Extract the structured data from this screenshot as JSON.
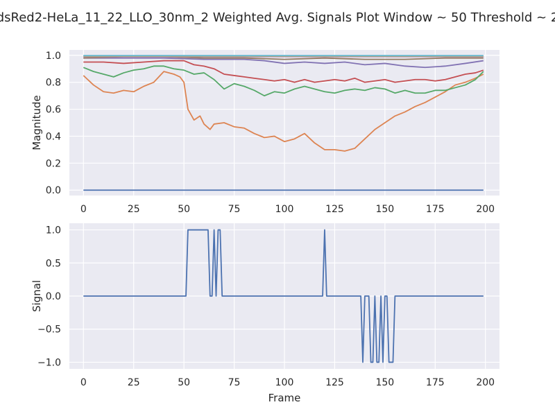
{
  "figure": {
    "title": "dsRed2-HeLa_11_22_LLO_30nm_2 Weighted Avg. Signals Plot Window ~ 50 Threshold ~ 2"
  },
  "chart_data": [
    {
      "type": "line",
      "ylabel": "Magnitude",
      "xlabel": "",
      "xlim": [
        -7,
        207
      ],
      "ylim": [
        -0.04,
        1.04
      ],
      "xticks": [
        0,
        25,
        50,
        75,
        100,
        125,
        150,
        175,
        200
      ],
      "yticks": [
        0.0,
        0.2,
        0.4,
        0.6,
        0.8,
        1.0
      ],
      "ytick_labels": [
        "0.0",
        "0.2",
        "0.4",
        "0.6",
        "0.8",
        "1.0"
      ],
      "grid": true,
      "series": [
        {
          "color": "#4c72b0",
          "x": [
            0,
            199
          ],
          "y": [
            0.0,
            0.0
          ]
        },
        {
          "color": "#dd8452",
          "x": [
            0,
            5,
            10,
            15,
            20,
            25,
            30,
            35,
            40,
            45,
            48,
            50,
            52,
            55,
            58,
            60,
            63,
            65,
            70,
            75,
            80,
            85,
            90,
            95,
            100,
            105,
            110,
            115,
            120,
            125,
            130,
            135,
            140,
            145,
            150,
            155,
            160,
            165,
            170,
            175,
            180,
            185,
            190,
            195,
            199
          ],
          "y": [
            0.85,
            0.78,
            0.73,
            0.72,
            0.74,
            0.73,
            0.77,
            0.8,
            0.88,
            0.86,
            0.84,
            0.8,
            0.6,
            0.52,
            0.55,
            0.49,
            0.45,
            0.49,
            0.5,
            0.47,
            0.46,
            0.42,
            0.39,
            0.4,
            0.36,
            0.38,
            0.42,
            0.35,
            0.3,
            0.3,
            0.29,
            0.31,
            0.38,
            0.45,
            0.5,
            0.55,
            0.58,
            0.62,
            0.65,
            0.69,
            0.73,
            0.78,
            0.8,
            0.83,
            0.86
          ]
        },
        {
          "color": "#55a868",
          "x": [
            0,
            5,
            10,
            15,
            20,
            25,
            30,
            35,
            40,
            45,
            50,
            55,
            60,
            65,
            70,
            75,
            80,
            85,
            90,
            95,
            100,
            105,
            110,
            115,
            120,
            125,
            130,
            135,
            140,
            145,
            150,
            155,
            160,
            165,
            170,
            175,
            180,
            185,
            190,
            195,
            199
          ],
          "y": [
            0.91,
            0.88,
            0.86,
            0.84,
            0.87,
            0.89,
            0.9,
            0.92,
            0.92,
            0.9,
            0.89,
            0.86,
            0.87,
            0.82,
            0.75,
            0.79,
            0.77,
            0.74,
            0.7,
            0.73,
            0.72,
            0.75,
            0.77,
            0.75,
            0.73,
            0.72,
            0.74,
            0.75,
            0.74,
            0.76,
            0.75,
            0.72,
            0.74,
            0.72,
            0.72,
            0.74,
            0.74,
            0.76,
            0.78,
            0.82,
            0.88
          ]
        },
        {
          "color": "#c44e52",
          "x": [
            0,
            10,
            20,
            30,
            40,
            50,
            55,
            60,
            65,
            70,
            75,
            80,
            85,
            90,
            95,
            100,
            105,
            110,
            115,
            120,
            125,
            130,
            135,
            140,
            145,
            150,
            155,
            160,
            165,
            170,
            175,
            180,
            185,
            190,
            195,
            199
          ],
          "y": [
            0.95,
            0.95,
            0.94,
            0.95,
            0.96,
            0.96,
            0.93,
            0.92,
            0.9,
            0.86,
            0.85,
            0.84,
            0.83,
            0.82,
            0.81,
            0.82,
            0.8,
            0.82,
            0.8,
            0.81,
            0.82,
            0.81,
            0.83,
            0.8,
            0.81,
            0.82,
            0.8,
            0.81,
            0.82,
            0.82,
            0.81,
            0.82,
            0.84,
            0.86,
            0.87,
            0.89
          ]
        },
        {
          "color": "#8172b3",
          "x": [
            0,
            20,
            40,
            60,
            80,
            90,
            100,
            110,
            120,
            130,
            140,
            150,
            160,
            170,
            180,
            190,
            199
          ],
          "y": [
            0.98,
            0.98,
            0.98,
            0.97,
            0.97,
            0.96,
            0.94,
            0.95,
            0.94,
            0.95,
            0.93,
            0.94,
            0.92,
            0.91,
            0.92,
            0.94,
            0.96
          ]
        },
        {
          "color": "#937860",
          "x": [
            0,
            20,
            40,
            60,
            80,
            100,
            120,
            140,
            160,
            180,
            199
          ],
          "y": [
            0.98,
            0.99,
            0.99,
            0.98,
            0.98,
            0.97,
            0.98,
            0.97,
            0.97,
            0.98,
            0.98
          ]
        },
        {
          "color": "#da8bc3",
          "x": [
            0,
            50,
            100,
            150,
            199
          ],
          "y": [
            0.99,
            0.99,
            0.99,
            0.99,
            0.99
          ]
        },
        {
          "color": "#8c8c8c",
          "x": [
            0,
            50,
            100,
            150,
            199
          ],
          "y": [
            0.992,
            0.992,
            0.992,
            0.992,
            0.992
          ]
        },
        {
          "color": "#ccb974",
          "x": [
            0,
            50,
            100,
            150,
            199
          ],
          "y": [
            0.995,
            0.995,
            0.995,
            0.995,
            0.995
          ]
        },
        {
          "color": "#64b5cd",
          "x": [
            0,
            50,
            100,
            150,
            199
          ],
          "y": [
            0.998,
            0.998,
            0.998,
            0.998,
            0.998
          ]
        }
      ]
    },
    {
      "type": "line",
      "ylabel": "Signal",
      "xlabel": "Frame",
      "xlim": [
        -7,
        207
      ],
      "ylim": [
        -1.1,
        1.1
      ],
      "xticks": [
        0,
        25,
        50,
        75,
        100,
        125,
        150,
        175,
        200
      ],
      "yticks": [
        -1.0,
        -0.5,
        0.0,
        0.5,
        1.0
      ],
      "ytick_labels": [
        "−1.0",
        "−0.5",
        "0.0",
        "0.5",
        "1.0"
      ],
      "grid": true,
      "series": [
        {
          "color": "#4c72b0",
          "x": [
            0,
            51,
            52,
            62,
            63,
            64,
            65,
            66,
            67,
            68,
            69,
            70,
            119,
            120,
            121,
            138,
            139,
            140,
            142,
            143,
            144,
            145,
            146,
            147,
            148,
            149,
            150,
            151,
            152,
            153,
            154,
            155,
            199
          ],
          "y": [
            0,
            0,
            1,
            1,
            0,
            0,
            1,
            0,
            1,
            1,
            0,
            0,
            0,
            1,
            0,
            0,
            -1,
            0,
            0,
            -1,
            -1,
            0,
            -1,
            -1,
            0,
            -1,
            0,
            0,
            -1,
            -1,
            -1,
            0,
            0
          ]
        }
      ]
    }
  ]
}
